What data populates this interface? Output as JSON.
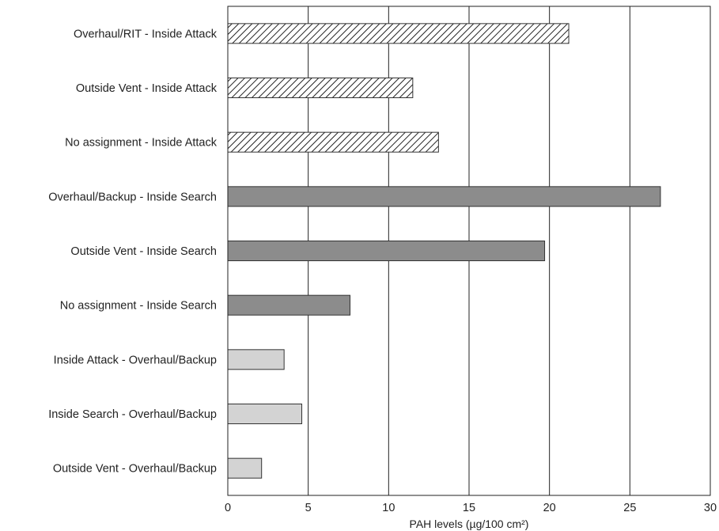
{
  "chart_data": {
    "type": "bar",
    "orientation": "horizontal",
    "categories": [
      "Overhaul/RIT - Inside Attack",
      "Outside Vent - Inside Attack",
      "No assignment - Inside Attack",
      "Overhaul/Backup - Inside Search",
      "Outside Vent - Inside Search",
      "No assignment - Inside Search",
      "Inside Attack - Overhaul/Backup",
      "Inside Search - Overhaul/Backup",
      "Outside Vent - Overhaul/Backup"
    ],
    "values": [
      21.2,
      11.5,
      13.1,
      26.9,
      19.7,
      7.6,
      3.5,
      4.6,
      2.1
    ],
    "bar_styles": [
      "hatch",
      "hatch",
      "hatch",
      "dark",
      "dark",
      "dark",
      "light",
      "light",
      "light"
    ],
    "xlim": [
      0,
      30
    ],
    "xticks": [
      0,
      5,
      10,
      15,
      20,
      25,
      30
    ],
    "xlabel": "PAH levels (µg/100 cm²)",
    "ylabel": "",
    "title": "",
    "grid": "vertical",
    "colors": {
      "dark": "#8c8c8c",
      "light": "#d3d3d3",
      "hatch_line": "#222222",
      "hatch_bg": "#ffffff",
      "edge": "#333333",
      "gridline": "#222222"
    }
  }
}
